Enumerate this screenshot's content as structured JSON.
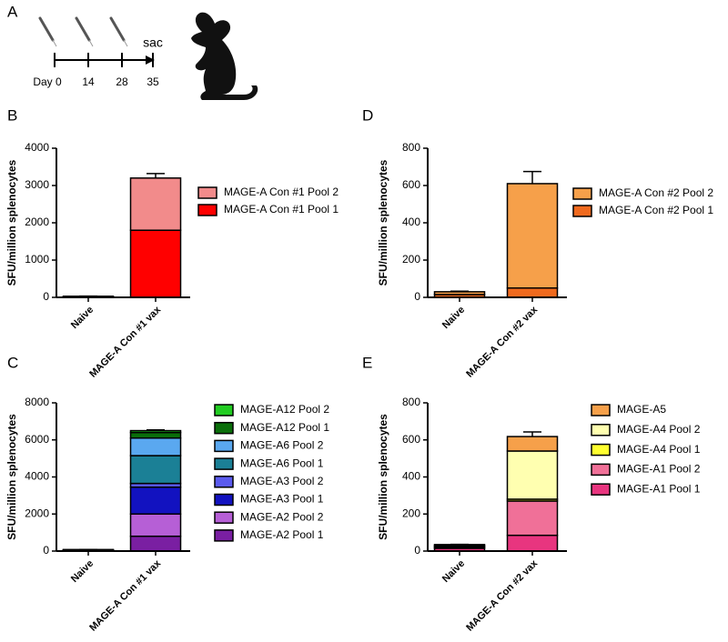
{
  "schematic": {
    "panel": "A",
    "day_labels": [
      "Day 0",
      "14",
      "28",
      "35"
    ],
    "end_label": "sac"
  },
  "chart_data": [
    {
      "type": "bar",
      "stacked": true,
      "panel": "B",
      "ylabel": "SFU/million splenocytes",
      "categories": [
        "Naive",
        "MAGE-A Con #1 vax"
      ],
      "ylim": [
        0,
        4000
      ],
      "yticks": [
        0,
        1000,
        2000,
        3000,
        4000
      ],
      "series": [
        {
          "name": "MAGE-A Con #1 Pool 1",
          "color": "#ff0000",
          "values": [
            20,
            1800
          ],
          "errors": [
            5,
            100
          ]
        },
        {
          "name": "MAGE-A Con #1 Pool 2",
          "color": "#f28b8b",
          "values": [
            10,
            1400
          ],
          "errors": [
            5,
            120
          ]
        }
      ]
    },
    {
      "type": "bar",
      "stacked": true,
      "panel": "C",
      "ylabel": "SFU/million splenocytes",
      "categories": [
        "Naive",
        "MAGE-A Con #1 vax"
      ],
      "ylim": [
        0,
        8000
      ],
      "yticks": [
        0,
        2000,
        4000,
        6000,
        8000
      ],
      "series": [
        {
          "name": "MAGE-A2 Pool 1",
          "color": "#7a1fa2",
          "values": [
            10,
            800
          ],
          "errors": [
            2,
            60
          ]
        },
        {
          "name": "MAGE-A2 Pool 2",
          "color": "#b65fd6",
          "values": [
            10,
            1200
          ],
          "errors": [
            2,
            100
          ]
        },
        {
          "name": "MAGE-A3 Pool 1",
          "color": "#1212c0",
          "values": [
            10,
            1450
          ],
          "errors": [
            2,
            100
          ]
        },
        {
          "name": "MAGE-A3 Pool 2",
          "color": "#5a5aee",
          "values": [
            10,
            200
          ],
          "errors": [
            2,
            60
          ]
        },
        {
          "name": "MAGE-A6 Pool 1",
          "color": "#1b8096",
          "values": [
            10,
            1500
          ],
          "errors": [
            2,
            100
          ]
        },
        {
          "name": "MAGE-A6 Pool 2",
          "color": "#5aa8f0",
          "values": [
            10,
            950
          ],
          "errors": [
            2,
            80
          ]
        },
        {
          "name": "MAGE-A12 Pool 1",
          "color": "#0a6e0a",
          "values": [
            10,
            300
          ],
          "errors": [
            2,
            50
          ]
        },
        {
          "name": "MAGE-A12 Pool 2",
          "color": "#22cc22",
          "values": [
            10,
            100
          ],
          "errors": [
            2,
            40
          ]
        }
      ]
    },
    {
      "type": "bar",
      "stacked": true,
      "panel": "D",
      "ylabel": "SFU/million splenocytes",
      "categories": [
        "Naive",
        "MAGE-A Con #2 vax"
      ],
      "ylim": [
        0,
        800
      ],
      "yticks": [
        0,
        200,
        400,
        600,
        800
      ],
      "series": [
        {
          "name": "MAGE-A Con #2 Pool 1",
          "color": "#f06a1e",
          "values": [
            15,
            50
          ],
          "errors": [
            3,
            5
          ]
        },
        {
          "name": "MAGE-A Con #2 Pool 2",
          "color": "#f6a04a",
          "values": [
            15,
            560
          ],
          "errors": [
            3,
            65
          ]
        }
      ]
    },
    {
      "type": "bar",
      "stacked": true,
      "panel": "E",
      "ylabel": "SFU/million splenocytes",
      "categories": [
        "Naive",
        "MAGE-A Con #2 vax"
      ],
      "ylim": [
        0,
        800
      ],
      "yticks": [
        0,
        200,
        400,
        600,
        800
      ],
      "series": [
        {
          "name": "MAGE-A1 Pool 1",
          "color": "#e8357f",
          "values": [
            15,
            85
          ],
          "errors": [
            2,
            5
          ]
        },
        {
          "name": "MAGE-A1 Pool 2",
          "color": "#f07098",
          "values": [
            5,
            185
          ],
          "errors": [
            2,
            40
          ]
        },
        {
          "name": "MAGE-A4 Pool 1",
          "color": "#ffff30",
          "values": [
            5,
            10
          ],
          "errors": [
            1,
            5
          ]
        },
        {
          "name": "MAGE-A4 Pool 2",
          "color": "#ffffb0",
          "values": [
            5,
            260
          ],
          "errors": [
            1,
            40
          ]
        },
        {
          "name": "MAGE-A5",
          "color": "#f6a04a",
          "values": [
            5,
            78
          ],
          "errors": [
            1,
            25
          ]
        }
      ]
    }
  ]
}
